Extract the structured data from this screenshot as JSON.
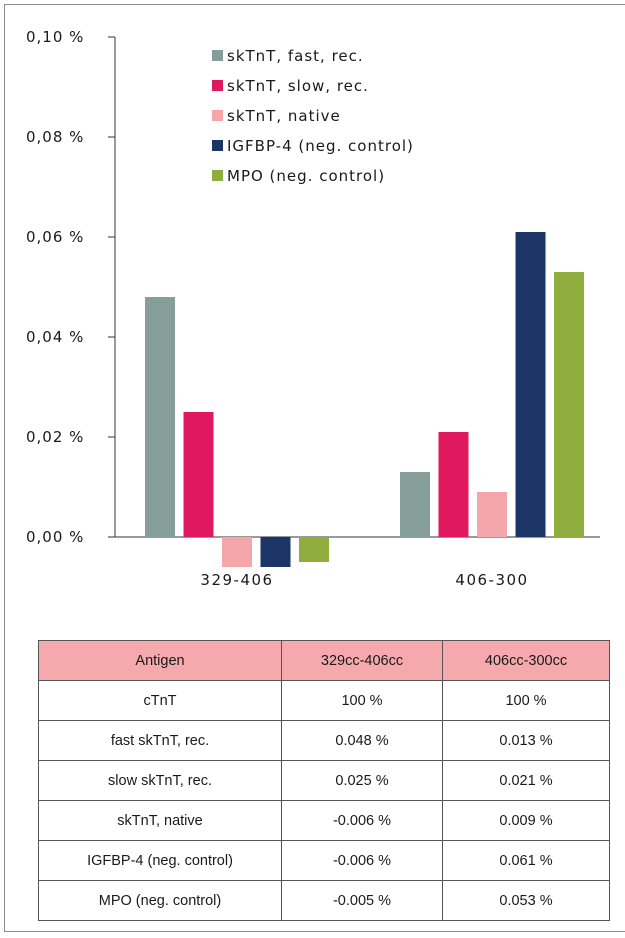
{
  "chart_data": {
    "type": "bar",
    "categories": [
      "329-406",
      "406-300"
    ],
    "series": [
      {
        "name": "skTnT, fast, rec.",
        "color": "#869e98",
        "values": [
          0.048,
          0.013
        ]
      },
      {
        "name": "skTnT, slow, rec.",
        "color": "#e0195e",
        "values": [
          0.025,
          0.021
        ]
      },
      {
        "name": "skTnT, native",
        "color": "#f4a6aa",
        "values": [
          -0.006,
          0.009
        ]
      },
      {
        "name": "IGFBP-4 (neg. control)",
        "color": "#1b3566",
        "values": [
          -0.006,
          0.061
        ]
      },
      {
        "name": "MPO (neg. control)",
        "color": "#8fae3e",
        "values": [
          -0.005,
          0.053
        ]
      }
    ],
    "ylim": [
      0,
      0.1
    ],
    "yticks": [
      0,
      0.02,
      0.04,
      0.06,
      0.08,
      0.1
    ],
    "ytick_labels": [
      "0,00 %",
      "0,02 %",
      "0,04 %",
      "0,06 %",
      "0,08 %",
      "0,10 %"
    ],
    "legend_position": "top-center",
    "grid": false
  },
  "table": {
    "headers": [
      "Antigen",
      "329cc-406cc",
      "406cc-300cc"
    ],
    "rows": [
      [
        "cTnT",
        "100 %",
        "100 %"
      ],
      [
        "fast skTnT, rec.",
        "0.048 %",
        "0.013 %"
      ],
      [
        "slow skTnT, rec.",
        "0.025 %",
        "0.021 %"
      ],
      [
        "skTnT, native",
        "-0.006 %",
        "0.009 %"
      ],
      [
        "IGFBP-4 (neg. control)",
        "-0.006 %",
        "0.061 %"
      ],
      [
        "MPO (neg. control)",
        "-0.005 %",
        "0.053 %"
      ]
    ],
    "header_color": "#f5a9ad"
  }
}
